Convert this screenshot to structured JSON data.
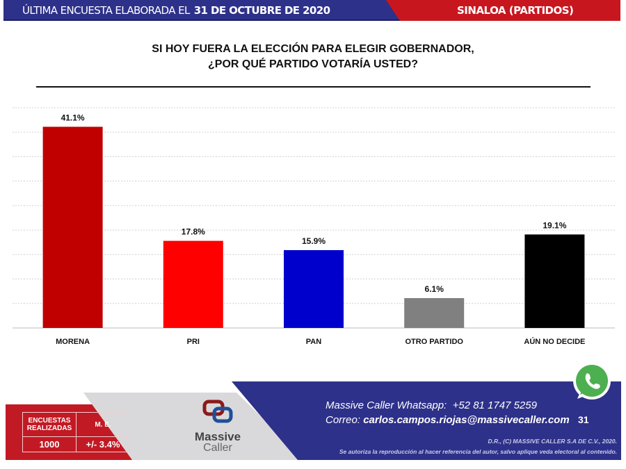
{
  "header": {
    "prefix": "ÚLTIMA ENCUESTA ELABORADA EL",
    "date": "31 DE OCTUBRE DE 2020",
    "region": "SINALOA (PARTIDOS)"
  },
  "chart_data": {
    "type": "bar",
    "title": [
      "SI HOY FUERA LA ELECCIÓN PARA ELEGIR GOBERNADOR,",
      "¿POR QUÉ PARTIDO VOTARÍA USTED?"
    ],
    "categories": [
      "MORENA",
      "PRI",
      "PAN",
      "OTRO PARTIDO",
      "AÚN NO DECIDE"
    ],
    "values": [
      41.1,
      17.8,
      15.9,
      6.1,
      19.1
    ],
    "data_labels": [
      "41.1%",
      "17.8%",
      "15.9%",
      "6.1%",
      "19.1%"
    ],
    "colors": [
      "#c00000",
      "#ff0000",
      "#0000cc",
      "#808080",
      "#000000"
    ],
    "ylim": [
      0,
      45
    ],
    "grid": true,
    "grid_step": 5,
    "y_axis_visible": false,
    "unit": "%"
  },
  "footer": {
    "stats_header": [
      "ENCUESTAS REALIZADAS",
      "M. E."
    ],
    "stats_values": [
      "1000",
      "+/- 3.4%"
    ],
    "logo_text": [
      "Massive",
      "Caller"
    ],
    "whatsapp_label": "Massive Caller Whatsapp:",
    "whatsapp_number": "+52 81 1747 5259",
    "email_label": "Correo:",
    "email": "carlos.campos.riojas@massivecaller.com",
    "page_number": "31",
    "copyright": "D.R., (C) MASSIVE CALLER S.A DE C.V., 2020.",
    "notice": "Se autoriza la reproducción al hacer referencia del autor, salvo aplique veda electoral al contenido.",
    "colors": {
      "red": "#c21a24",
      "blue": "#2e3189",
      "whatsapp": "#4caf50"
    }
  }
}
